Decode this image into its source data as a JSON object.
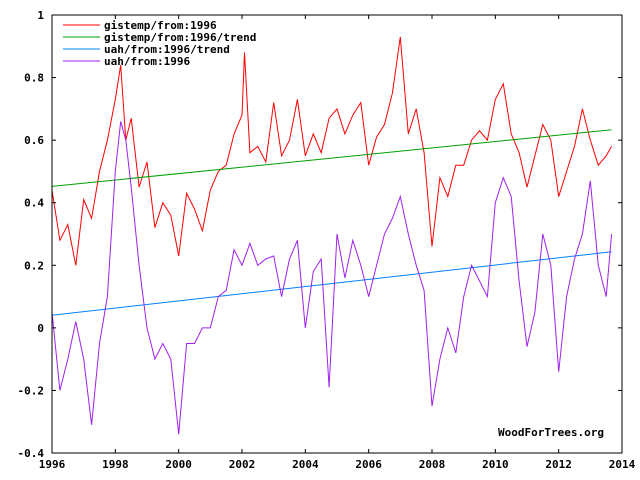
{
  "chart_data": {
    "type": "line",
    "title": "",
    "xlabel": "",
    "ylabel": "",
    "xlim": [
      1996,
      2014
    ],
    "ylim": [
      -0.4,
      1
    ],
    "x_ticks": [
      1996,
      1998,
      2000,
      2002,
      2004,
      2006,
      2008,
      2010,
      2012,
      2014
    ],
    "y_ticks": [
      -0.4,
      -0.2,
      0,
      0.2,
      0.4,
      0.6,
      0.8,
      1
    ],
    "grid": false,
    "legend_position": "top-left",
    "credit": "WoodForTrees.org",
    "series": [
      {
        "name": "gistemp/from:1996",
        "color": "#ff0000",
        "style": "line",
        "x": [
          1996.0,
          1996.25,
          1996.5,
          1996.75,
          1997.0,
          1997.25,
          1997.5,
          1997.75,
          1998.0,
          1998.17,
          1998.33,
          1998.5,
          1998.75,
          1999.0,
          1999.25,
          1999.5,
          1999.75,
          2000.0,
          2000.25,
          2000.5,
          2000.75,
          2001.0,
          2001.25,
          2001.5,
          2001.75,
          2002.0,
          2002.08,
          2002.25,
          2002.5,
          2002.75,
          2003.0,
          2003.25,
          2003.5,
          2003.75,
          2004.0,
          2004.25,
          2004.5,
          2004.75,
          2005.0,
          2005.25,
          2005.5,
          2005.75,
          2006.0,
          2006.25,
          2006.5,
          2006.75,
          2007.0,
          2007.25,
          2007.5,
          2007.75,
          2008.0,
          2008.25,
          2008.5,
          2008.75,
          2009.0,
          2009.25,
          2009.5,
          2009.75,
          2010.0,
          2010.25,
          2010.5,
          2010.75,
          2011.0,
          2011.25,
          2011.5,
          2011.75,
          2012.0,
          2012.25,
          2012.5,
          2012.75,
          2013.0,
          2013.25,
          2013.5,
          2013.67
        ],
        "y": [
          0.44,
          0.28,
          0.33,
          0.2,
          0.41,
          0.35,
          0.5,
          0.6,
          0.73,
          0.84,
          0.6,
          0.67,
          0.45,
          0.53,
          0.32,
          0.4,
          0.36,
          0.23,
          0.43,
          0.38,
          0.31,
          0.44,
          0.5,
          0.52,
          0.62,
          0.68,
          0.88,
          0.56,
          0.58,
          0.53,
          0.72,
          0.55,
          0.6,
          0.73,
          0.55,
          0.62,
          0.56,
          0.67,
          0.7,
          0.62,
          0.68,
          0.72,
          0.52,
          0.61,
          0.65,
          0.75,
          0.93,
          0.62,
          0.7,
          0.56,
          0.26,
          0.48,
          0.42,
          0.52,
          0.52,
          0.6,
          0.63,
          0.6,
          0.73,
          0.78,
          0.62,
          0.56,
          0.45,
          0.55,
          0.65,
          0.6,
          0.42,
          0.5,
          0.58,
          0.7,
          0.6,
          0.52,
          0.55,
          0.58
        ]
      },
      {
        "name": "gistemp/from:1996/trend",
        "color": "#00a000",
        "style": "line",
        "x": [
          1996.0,
          2013.67
        ],
        "y": [
          0.452,
          0.633
        ]
      },
      {
        "name": "uah/from:1996/trend",
        "color": "#0080ff",
        "style": "line",
        "x": [
          1996.0,
          2013.67
        ],
        "y": [
          0.04,
          0.243
        ]
      },
      {
        "name": "uah/from:1996",
        "color": "#a020f0",
        "style": "line",
        "x": [
          1996.0,
          1996.25,
          1996.5,
          1996.75,
          1997.0,
          1997.25,
          1997.5,
          1997.75,
          1998.0,
          1998.17,
          1998.33,
          1998.5,
          1998.75,
          1999.0,
          1999.25,
          1999.5,
          1999.75,
          2000.0,
          2000.25,
          2000.5,
          2000.75,
          2001.0,
          2001.25,
          2001.5,
          2001.75,
          2002.0,
          2002.25,
          2002.5,
          2002.75,
          2003.0,
          2003.25,
          2003.5,
          2003.75,
          2004.0,
          2004.25,
          2004.5,
          2004.75,
          2005.0,
          2005.25,
          2005.5,
          2005.75,
          2006.0,
          2006.25,
          2006.5,
          2006.75,
          2007.0,
          2007.25,
          2007.5,
          2007.75,
          2008.0,
          2008.25,
          2008.5,
          2008.75,
          2009.0,
          2009.25,
          2009.5,
          2009.75,
          2010.0,
          2010.25,
          2010.5,
          2010.75,
          2011.0,
          2011.25,
          2011.5,
          2011.75,
          2012.0,
          2012.25,
          2012.5,
          2012.75,
          2013.0,
          2013.25,
          2013.5,
          2013.67
        ],
        "y": [
          0.05,
          -0.2,
          -0.1,
          0.02,
          -0.1,
          -0.31,
          -0.05,
          0.1,
          0.5,
          0.66,
          0.6,
          0.45,
          0.2,
          0.0,
          -0.1,
          -0.05,
          -0.1,
          -0.34,
          -0.05,
          -0.05,
          0.0,
          0.0,
          0.1,
          0.12,
          0.25,
          0.2,
          0.27,
          0.2,
          0.22,
          0.23,
          0.1,
          0.22,
          0.28,
          0.0,
          0.18,
          0.22,
          -0.19,
          0.3,
          0.16,
          0.28,
          0.2,
          0.1,
          0.2,
          0.3,
          0.35,
          0.42,
          0.3,
          0.2,
          0.12,
          -0.25,
          -0.1,
          0.0,
          -0.08,
          0.1,
          0.2,
          0.15,
          0.1,
          0.4,
          0.48,
          0.42,
          0.15,
          -0.06,
          0.05,
          0.3,
          0.2,
          -0.14,
          0.1,
          0.22,
          0.3,
          0.47,
          0.2,
          0.1,
          0.3
        ]
      }
    ]
  }
}
